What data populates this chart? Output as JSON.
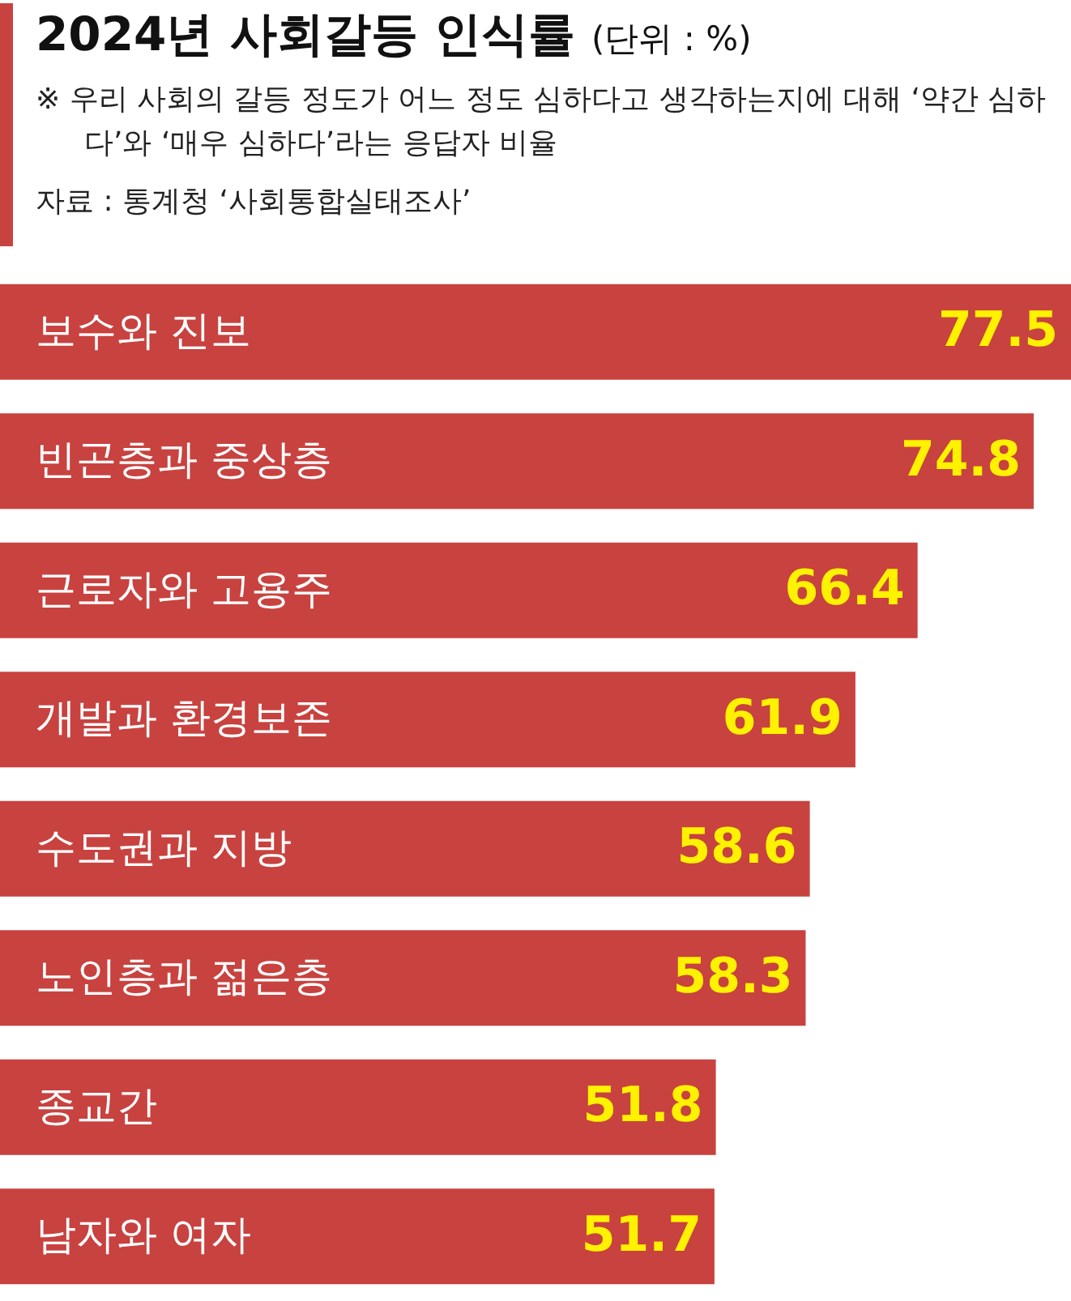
{
  "chart_data": {
    "type": "bar",
    "orientation": "horizontal",
    "title": "2024년 사회갈등 인식률",
    "subtitle": "(단위 : %)",
    "annotations": [
      "※ 우리 사회의 갈등 정도가 어느 정도 심하다고 생각하는지에 대해 ‘약간 심하다’와 ‘매우 심하다’라는 응답자 비율",
      "자료 : 통계청 ‘사회통합실태조사’"
    ],
    "categories": [
      "보수와 진보",
      "빈곤층과 중상층",
      "근로자와 고용주",
      "개발과 환경보존",
      "수도권과 지방",
      "노인층과 젊은층",
      "종교간",
      "남자와 여자"
    ],
    "values": [
      77.5,
      74.8,
      66.4,
      61.9,
      58.6,
      58.3,
      51.8,
      51.7
    ],
    "color": "#c8423f",
    "xlim": [
      0,
      77.5
    ],
    "data_labels": true,
    "tick_labels": "y",
    "legend": false
  }
}
